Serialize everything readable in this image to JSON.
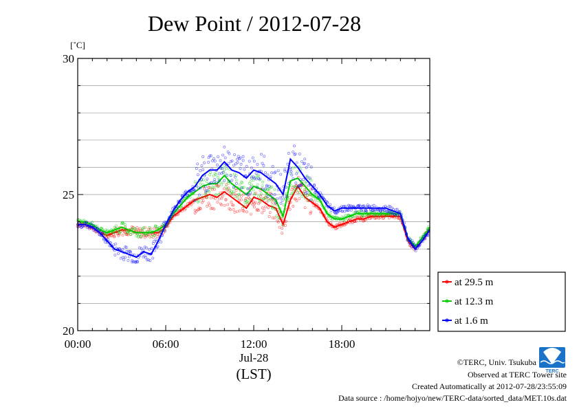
{
  "chart_data": {
    "type": "line",
    "title": "Dew Point / 2012-07-28",
    "unit_label": "[˚C]",
    "ylim": [
      20,
      30
    ],
    "yticks": [
      20,
      25,
      30
    ],
    "xlim": [
      0,
      24
    ],
    "xticks": [
      {
        "hour": 0,
        "label": "00:00"
      },
      {
        "hour": 6,
        "label": "06:00"
      },
      {
        "hour": 12,
        "label": "12:00"
      },
      {
        "hour": 18,
        "label": "18:00"
      }
    ],
    "date_label": "Jul-28",
    "xlabel": "(LST)",
    "grid": true,
    "legend_placement": "right",
    "series": [
      {
        "name": "at 29.5 m",
        "color": "#ff0000",
        "x": [
          0,
          0.5,
          1,
          1.5,
          2,
          2.5,
          3,
          3.5,
          4,
          4.5,
          5,
          5.5,
          6,
          6.5,
          7,
          7.5,
          8,
          8.5,
          9,
          9.5,
          10,
          10.5,
          11,
          11.5,
          12,
          12.5,
          13,
          13.5,
          14,
          14.5,
          15,
          15.5,
          16,
          16.5,
          17,
          17.5,
          18,
          18.5,
          19,
          19.5,
          20,
          20.5,
          21,
          21.5,
          22,
          22.5,
          23,
          23.5,
          24
        ],
        "y": [
          23.9,
          23.9,
          23.8,
          23.6,
          23.5,
          23.6,
          23.7,
          23.7,
          23.6,
          23.6,
          23.6,
          23.6,
          23.8,
          24.2,
          24.4,
          24.6,
          24.8,
          24.9,
          25.0,
          24.9,
          25.1,
          24.9,
          24.7,
          24.5,
          24.9,
          24.8,
          24.6,
          24.5,
          23.9,
          24.8,
          25.3,
          24.9,
          24.7,
          24.5,
          24.0,
          23.8,
          23.9,
          24.0,
          24.1,
          24.1,
          24.2,
          24.2,
          24.2,
          24.2,
          24.2,
          23.3,
          23.0,
          23.3,
          23.8
        ]
      },
      {
        "name": "at 12.3 m",
        "color": "#00cc00",
        "x": [
          0,
          0.5,
          1,
          1.5,
          2,
          2.5,
          3,
          3.5,
          4,
          4.5,
          5,
          5.5,
          6,
          6.5,
          7,
          7.5,
          8,
          8.5,
          9,
          9.5,
          10,
          10.5,
          11,
          11.5,
          12,
          12.5,
          13,
          13.5,
          14,
          14.5,
          15,
          15.5,
          16,
          16.5,
          17,
          17.5,
          18,
          18.5,
          19,
          19.5,
          20,
          20.5,
          21,
          21.5,
          22,
          22.5,
          23,
          23.5,
          24
        ],
        "y": [
          24.0,
          24.0,
          23.9,
          23.7,
          23.6,
          23.7,
          23.8,
          23.7,
          23.6,
          23.6,
          23.6,
          23.7,
          23.9,
          24.3,
          24.6,
          24.9,
          25.1,
          25.3,
          25.4,
          25.4,
          25.7,
          25.4,
          25.2,
          25.0,
          25.3,
          25.2,
          25.0,
          24.8,
          24.2,
          25.5,
          25.6,
          25.3,
          25.0,
          24.8,
          24.3,
          24.1,
          24.1,
          24.2,
          24.3,
          24.3,
          24.3,
          24.3,
          24.3,
          24.3,
          24.3,
          23.4,
          23.1,
          23.4,
          23.8
        ]
      },
      {
        "name": "at 1.6 m",
        "color": "#0000ff",
        "x": [
          0,
          0.5,
          1,
          1.5,
          2,
          2.5,
          3,
          3.5,
          4,
          4.5,
          5,
          5.5,
          6,
          6.5,
          7,
          7.5,
          8,
          8.5,
          9,
          9.5,
          10,
          10.5,
          11,
          11.5,
          12,
          12.5,
          13,
          13.5,
          14,
          14.5,
          15,
          15.5,
          16,
          16.5,
          17,
          17.5,
          18,
          18.5,
          19,
          19.5,
          20,
          20.5,
          21,
          21.5,
          22,
          22.5,
          23,
          23.5,
          24
        ],
        "y": [
          23.9,
          23.9,
          23.8,
          23.6,
          23.3,
          23.0,
          22.9,
          22.8,
          22.7,
          22.9,
          22.8,
          23.3,
          23.9,
          24.4,
          24.8,
          25.1,
          25.3,
          25.7,
          25.9,
          25.9,
          26.2,
          25.9,
          25.8,
          25.6,
          25.9,
          25.8,
          25.6,
          25.4,
          25.0,
          26.3,
          26.0,
          25.6,
          25.3,
          25.0,
          24.6,
          24.4,
          24.5,
          24.5,
          24.5,
          24.5,
          24.5,
          24.5,
          24.5,
          24.4,
          24.3,
          23.4,
          23.0,
          23.3,
          23.7
        ]
      }
    ]
  },
  "footer": {
    "copyright": "©TERC, Univ. Tsukuba",
    "observed": "Observed at TERC Tower site",
    "created": "Created Automatically at 2012-07-28/23:55:09",
    "source": "Data source : /home/hojyo/new/TERC-data/sorted_data/MET.10s.dat",
    "logo_text": "TERC"
  }
}
